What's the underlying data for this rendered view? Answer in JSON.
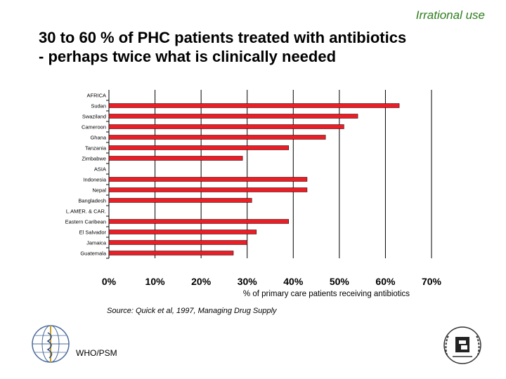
{
  "header": {
    "tag": "Irrational use",
    "title_line1": "30 to 60 % of PHC patients treated with antibiotics",
    "title_line2": "- perhaps twice what is clinically needed"
  },
  "chart_data": {
    "type": "bar",
    "orientation": "horizontal",
    "categories": [
      "AFRICA",
      "Sudan",
      "Swaziland",
      "Cameroon",
      "Ghana",
      "Tanzania",
      "Zimbabwe",
      "ASIA",
      "Indonesia",
      "Nepal",
      "Bangladesh",
      "L.AMER. & CAR.",
      "Eastern Caribean",
      "El Salvador",
      "Jamaica",
      "Guatemala"
    ],
    "values": [
      null,
      63,
      54,
      51,
      47,
      39,
      29,
      null,
      43,
      43,
      31,
      null,
      39,
      32,
      30,
      27
    ],
    "xlabel": "% of primary care patients receiving antibiotics",
    "ylabel": "",
    "xlim": [
      0,
      70
    ],
    "xticks": [
      "0%",
      "10%",
      "20%",
      "30%",
      "40%",
      "50%",
      "60%",
      "70%"
    ],
    "bar_color": "#ee1c25",
    "grid": "vertical gridlines at each tick"
  },
  "source": "Source: Quick et al, 1997, Managing Drug Supply",
  "footer": {
    "label": "WHO/PSM"
  },
  "icons": {
    "left_logo": "who-emblem-icon",
    "right_logo": "un-emblem-icon"
  }
}
